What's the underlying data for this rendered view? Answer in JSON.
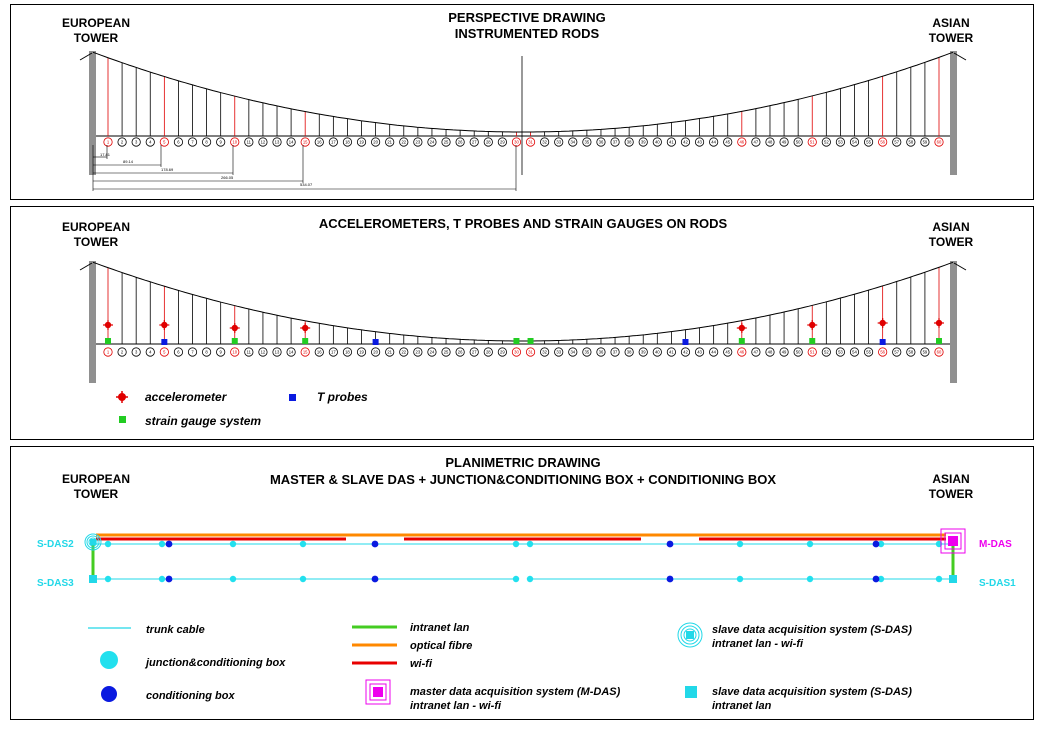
{
  "panel1": {
    "title_line1": "PERSPECTIVE DRAWING",
    "title_line2": "INSTRUMENTED RODS",
    "left_tower": [
      "EUROPEAN",
      "TOWER"
    ],
    "right_tower": [
      "ASIAN",
      "TOWER"
    ],
    "dimensions": [
      "17.81",
      "89.14",
      "178.69",
      "266.05",
      "534.07"
    ]
  },
  "panel2": {
    "title": "ACCELEROMETERS, T PROBES AND STRAIN GAUGES ON RODS",
    "left_tower": [
      "EUROPEAN",
      "TOWER"
    ],
    "right_tower": [
      "ASIAN",
      "TOWER"
    ],
    "legend": {
      "accelerometer": "accelerometer",
      "t_probes": "T probes",
      "strain_gauge": "strain gauge system"
    }
  },
  "panel3": {
    "title_line1": "PLANIMETRIC DRAWING",
    "title_line2": "MASTER & SLAVE DAS + JUNCTION&CONDITIONING BOX + CONDITIONING BOX",
    "left_tower": [
      "EUROPEAN",
      "TOWER"
    ],
    "right_tower": [
      "ASIAN",
      "TOWER"
    ],
    "labels": {
      "sdas2": "S-DAS2",
      "sdas3": "S-DAS3",
      "mdas": "M-DAS",
      "sdas1": "S-DAS1"
    },
    "legend": {
      "trunk_cable": "trunk cable",
      "junction_box": "junction&conditioning box",
      "conditioning_box": "conditioning box",
      "intranet_lan": "intranet lan",
      "optical_fibre": "optical fibre",
      "wifi": "wi-fi",
      "mdas_1": "master data acquisition system (M-DAS)",
      "mdas_2": "intranet lan - wi-fi",
      "sdas_wifi_1": "slave data acquisition system (S-DAS)",
      "sdas_wifi_2": "intranet lan - wi-fi",
      "sdas_lan_1": "slave data acquisition system (S-DAS)",
      "sdas_lan_2": "intranet lan"
    }
  },
  "colors": {
    "instrumented": "#e00000",
    "accelerometer": "#e00000",
    "t_probe": "#0a1ae0",
    "strain_gauge": "#22cc22",
    "trunk": "#22d8e8",
    "junction": "#22e0ee",
    "conditioning": "#0a1ae0",
    "intranet": "#44cc22",
    "optical": "#ff8800",
    "wifi": "#e80000",
    "mdas": "#ee00ee",
    "tower": "#909090"
  }
}
